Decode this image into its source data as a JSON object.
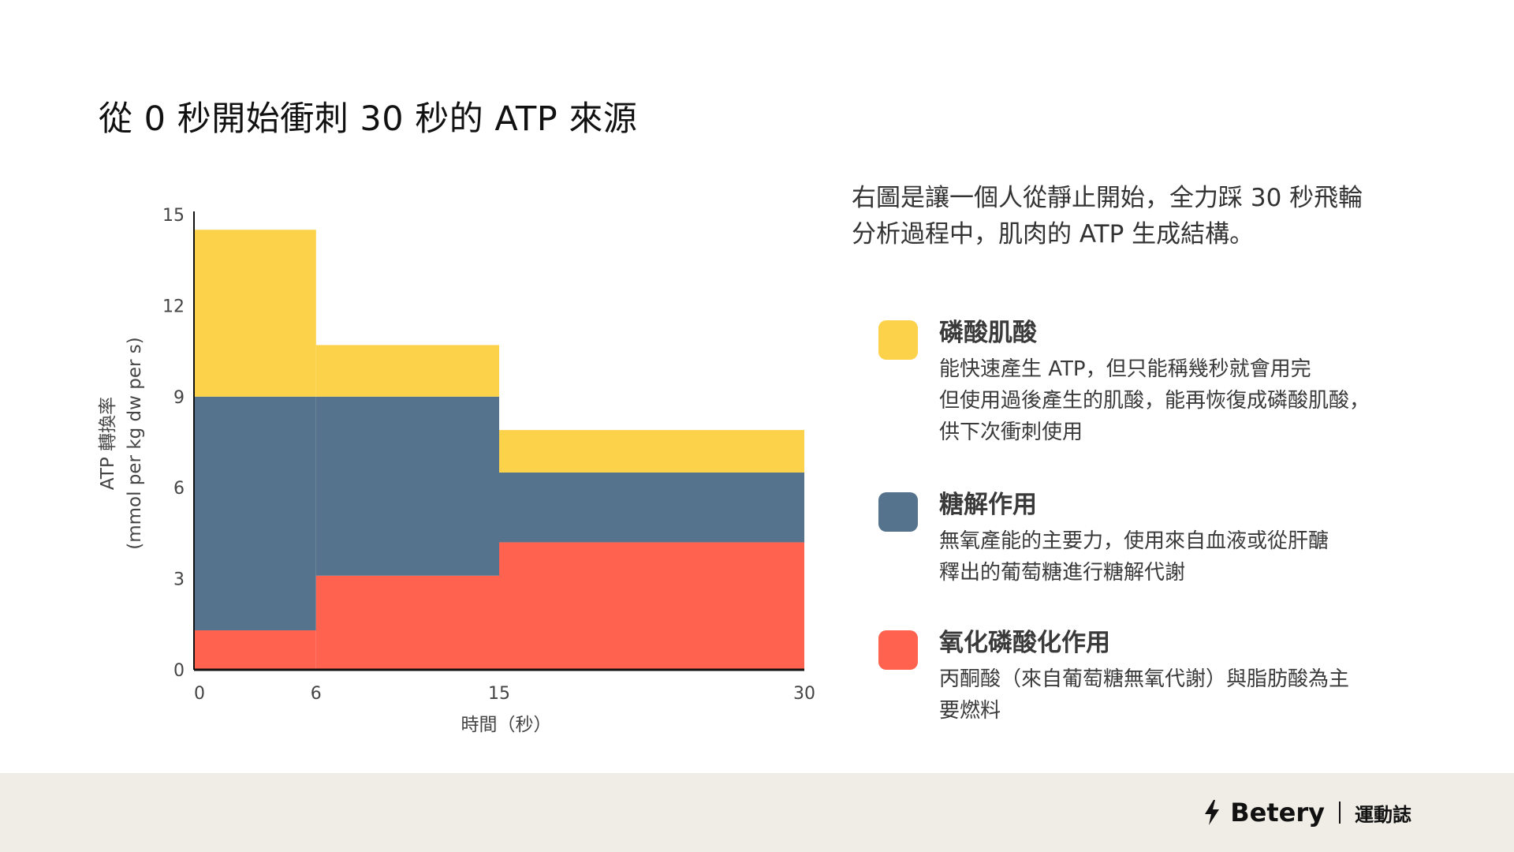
{
  "title": "從 0 秒開始衝刺 30 秒的 ATP 來源",
  "description": {
    "lines": [
      "右圖是讓一個人從靜止開始，全力踩 30 秒飛輪",
      "分析過程中，肌肉的 ATP 生成結構。"
    ]
  },
  "legend": [
    {
      "name": "磷酸肌酸",
      "color": "#fcd24a",
      "lines": [
        "能快速產生 ATP，但只能稱幾秒就會用完",
        "但使用過後產生的肌酸，能再恢復成磷酸肌酸，",
        "供下次衝刺使用"
      ]
    },
    {
      "name": "糖解作用",
      "color": "#56738d",
      "lines": [
        "無氧產能的主要力，使用來自血液或從肝醣",
        "釋出的葡萄糖進行糖解代謝"
      ]
    },
    {
      "name": "氧化磷酸化作用",
      "color": "#ff624e",
      "lines": [
        "丙酮酸（來自葡萄糖無氧代謝）與脂肪酸為主",
        "要燃料"
      ]
    }
  ],
  "chart_data": {
    "type": "bar",
    "stacked": true,
    "xlabel": "時間（秒）",
    "ylabel": "ATP 轉換率",
    "ylabel_sub": "(mmol per kg dw per s)",
    "x_ticks": [
      "0",
      "6",
      "15",
      "30"
    ],
    "y_ticks": [
      "0",
      "3",
      "6",
      "9",
      "12",
      "15"
    ],
    "xlim": [
      0,
      30
    ],
    "ylim": [
      0,
      15
    ],
    "intervals": [
      {
        "start": 0,
        "end": 6
      },
      {
        "start": 6,
        "end": 15
      },
      {
        "start": 15,
        "end": 30
      }
    ],
    "series": [
      {
        "name": "氧化磷酸化作用",
        "color": "#ff624e",
        "values": [
          1.3,
          3.1,
          4.2
        ]
      },
      {
        "name": "糖解作用",
        "color": "#56738d",
        "values": [
          7.7,
          5.9,
          2.3
        ]
      },
      {
        "name": "磷酸肌酸",
        "color": "#fcd24a",
        "values": [
          5.5,
          1.7,
          1.4
        ]
      }
    ],
    "legend_position": "right"
  },
  "footer": {
    "brand": "Betery",
    "sub": "運動誌",
    "icon": "bolt-icon"
  }
}
